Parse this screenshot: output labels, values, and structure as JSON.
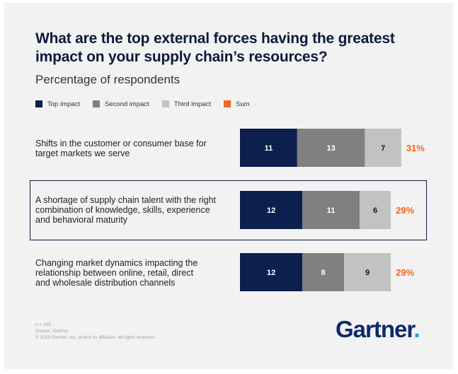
{
  "title": "What are the top external forces having the greatest impact on your supply chain’s resources?",
  "subtitle": "Percentage of respondents",
  "legend": [
    {
      "label": "Top impact",
      "color": "#0d1f4f"
    },
    {
      "label": "Second impact",
      "color": "#808080"
    },
    {
      "label": "Third impact",
      "color": "#c2c2c2"
    },
    {
      "label": "Sum",
      "color": "#f26522"
    }
  ],
  "chart_data": {
    "type": "bar",
    "orientation": "horizontal",
    "stacked": true,
    "title": "What are the top external forces having the greatest impact on your supply chain’s resources?",
    "subtitle": "Percentage of respondents",
    "categories": [
      "Shifts in the customer or consumer base for target markets we serve",
      "A shortage of supply chain talent with the right combination of knowledge, skills, experience and behavioral maturity",
      "Changing market dynamics impacting the relationship between online, retail, direct and wholesale distribution channels"
    ],
    "series": [
      {
        "name": "Top impact",
        "color": "#0d1f4f",
        "label_color": "#ffffff",
        "values": [
          11,
          12,
          12
        ]
      },
      {
        "name": "Second impact",
        "color": "#808080",
        "label_color": "#ffffff",
        "values": [
          13,
          11,
          8
        ]
      },
      {
        "name": "Third impact",
        "color": "#c2c2c2",
        "label_color": "#111111",
        "values": [
          7,
          6,
          9
        ]
      }
    ],
    "sums": [
      "31%",
      "29%",
      "29%"
    ],
    "sum_color": "#f26522",
    "highlighted_category_index": 1,
    "xlim": [
      0,
      31
    ]
  },
  "rows": [
    {
      "lines": [
        "Shifts in the customer or consumer base for",
        "target markets we serve"
      ]
    },
    {
      "lines": [
        "A shortage of supply chain talent with the right",
        "combination of knowledge, skills, experience",
        "and behavioral maturity"
      ]
    },
    {
      "lines": [
        "Changing market dynamics impacting the",
        "relationship between online, retail, direct",
        "and wholesale distribution channels"
      ]
    }
  ],
  "source": {
    "n": "n = 339",
    "line": "Source: Gartner",
    "copyright": "© 2019 Gartner, Inc. and/or its affiliates. All rights reserved."
  },
  "logo": {
    "text": "Gartner",
    "dot": "."
  }
}
